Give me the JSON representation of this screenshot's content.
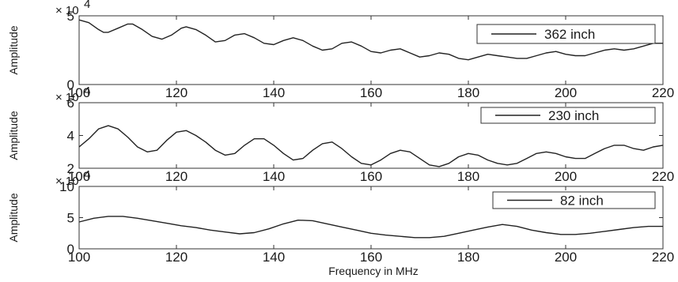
{
  "chart_data": [
    {
      "type": "line",
      "ylabel": "Amplitude",
      "multiplier": "× 10",
      "multiplier_exp": "4",
      "xlim": [
        100,
        220
      ],
      "ylim": [
        0,
        5
      ],
      "xticks": [
        "100",
        "120",
        "140",
        "160",
        "180",
        "200",
        "220"
      ],
      "yticks": [
        "0",
        "5"
      ],
      "ytick_values": [
        0,
        5
      ],
      "legend": "362 inch",
      "legend_position": "top-right",
      "series": [
        {
          "name": "362 inch",
          "x": [
            100,
            102,
            104,
            105,
            106,
            108,
            110,
            111,
            113,
            115,
            117,
            119,
            121,
            122,
            124,
            126,
            128,
            130,
            132,
            134,
            136,
            138,
            140,
            142,
            144,
            146,
            148,
            150,
            152,
            154,
            156,
            158,
            160,
            162,
            164,
            166,
            168,
            170,
            172,
            174,
            176,
            178,
            180,
            182,
            184,
            186,
            188,
            190,
            192,
            194,
            196,
            198,
            200,
            202,
            204,
            206,
            208,
            210,
            212,
            214,
            216,
            218,
            220
          ],
          "y": [
            4.7,
            4.5,
            4.0,
            3.8,
            3.8,
            4.1,
            4.4,
            4.4,
            4.0,
            3.5,
            3.3,
            3.6,
            4.1,
            4.2,
            4.0,
            3.6,
            3.1,
            3.2,
            3.6,
            3.7,
            3.4,
            3.0,
            2.9,
            3.2,
            3.4,
            3.2,
            2.8,
            2.5,
            2.6,
            3.0,
            3.1,
            2.8,
            2.4,
            2.3,
            2.5,
            2.6,
            2.3,
            2.0,
            2.1,
            2.3,
            2.2,
            1.9,
            1.8,
            2.0,
            2.2,
            2.1,
            2.0,
            1.9,
            1.9,
            2.1,
            2.3,
            2.4,
            2.2,
            2.1,
            2.1,
            2.3,
            2.5,
            2.6,
            2.5,
            2.6,
            2.8,
            3.0,
            3.0
          ]
        }
      ]
    },
    {
      "type": "line",
      "ylabel": "Amplitude",
      "multiplier": "× 10",
      "multiplier_exp": "4",
      "xlim": [
        100,
        220
      ],
      "ylim": [
        2,
        6
      ],
      "xticks": [
        "100",
        "120",
        "140",
        "160",
        "180",
        "200",
        "220"
      ],
      "yticks": [
        "2",
        "4",
        "6"
      ],
      "ytick_values": [
        2,
        4,
        6
      ],
      "legend": "230 inch",
      "legend_position": "top-right",
      "series": [
        {
          "name": "230 inch",
          "x": [
            100,
            102,
            104,
            106,
            108,
            110,
            112,
            114,
            116,
            118,
            120,
            122,
            124,
            126,
            128,
            130,
            132,
            134,
            136,
            138,
            140,
            142,
            144,
            146,
            148,
            150,
            152,
            154,
            156,
            158,
            160,
            162,
            164,
            166,
            168,
            170,
            172,
            174,
            176,
            178,
            180,
            182,
            184,
            186,
            188,
            190,
            192,
            194,
            196,
            198,
            200,
            202,
            204,
            206,
            208,
            210,
            212,
            214,
            216,
            218,
            220
          ],
          "y": [
            3.3,
            3.8,
            4.4,
            4.6,
            4.4,
            3.9,
            3.3,
            3.0,
            3.1,
            3.7,
            4.2,
            4.3,
            4.0,
            3.6,
            3.1,
            2.8,
            2.9,
            3.4,
            3.8,
            3.8,
            3.4,
            2.9,
            2.5,
            2.6,
            3.1,
            3.5,
            3.6,
            3.2,
            2.7,
            2.3,
            2.2,
            2.5,
            2.9,
            3.1,
            3.0,
            2.6,
            2.2,
            2.1,
            2.3,
            2.7,
            2.9,
            2.8,
            2.5,
            2.3,
            2.2,
            2.3,
            2.6,
            2.9,
            3.0,
            2.9,
            2.7,
            2.6,
            2.6,
            2.9,
            3.2,
            3.4,
            3.4,
            3.2,
            3.1,
            3.3,
            3.4
          ]
        }
      ]
    },
    {
      "type": "line",
      "ylabel": "Amplitude",
      "multiplier": "× 10",
      "multiplier_exp": "4",
      "xlim": [
        100,
        220
      ],
      "ylim": [
        0,
        10
      ],
      "xticks": [
        "100",
        "120",
        "140",
        "160",
        "180",
        "200",
        "220"
      ],
      "yticks": [
        "0",
        "5",
        "10"
      ],
      "ytick_values": [
        0,
        5,
        10
      ],
      "legend": "82 inch",
      "legend_position": "top-right",
      "series": [
        {
          "name": "82 inch",
          "x": [
            100,
            103,
            106,
            109,
            112,
            115,
            118,
            121,
            124,
            127,
            130,
            133,
            136,
            139,
            142,
            145,
            148,
            151,
            154,
            157,
            160,
            163,
            166,
            169,
            172,
            175,
            178,
            181,
            184,
            187,
            190,
            193,
            196,
            199,
            202,
            205,
            208,
            211,
            214,
            217,
            220
          ],
          "y": [
            4.3,
            4.9,
            5.2,
            5.2,
            4.9,
            4.5,
            4.1,
            3.7,
            3.4,
            3.0,
            2.7,
            2.4,
            2.6,
            3.2,
            4.0,
            4.6,
            4.5,
            4.0,
            3.5,
            3.0,
            2.5,
            2.2,
            2.0,
            1.8,
            1.8,
            2.0,
            2.5,
            3.0,
            3.5,
            3.9,
            3.6,
            3.0,
            2.6,
            2.3,
            2.3,
            2.5,
            2.8,
            3.1,
            3.4,
            3.6,
            3.6
          ]
        }
      ]
    }
  ],
  "xlabel": "Frequency in MHz"
}
